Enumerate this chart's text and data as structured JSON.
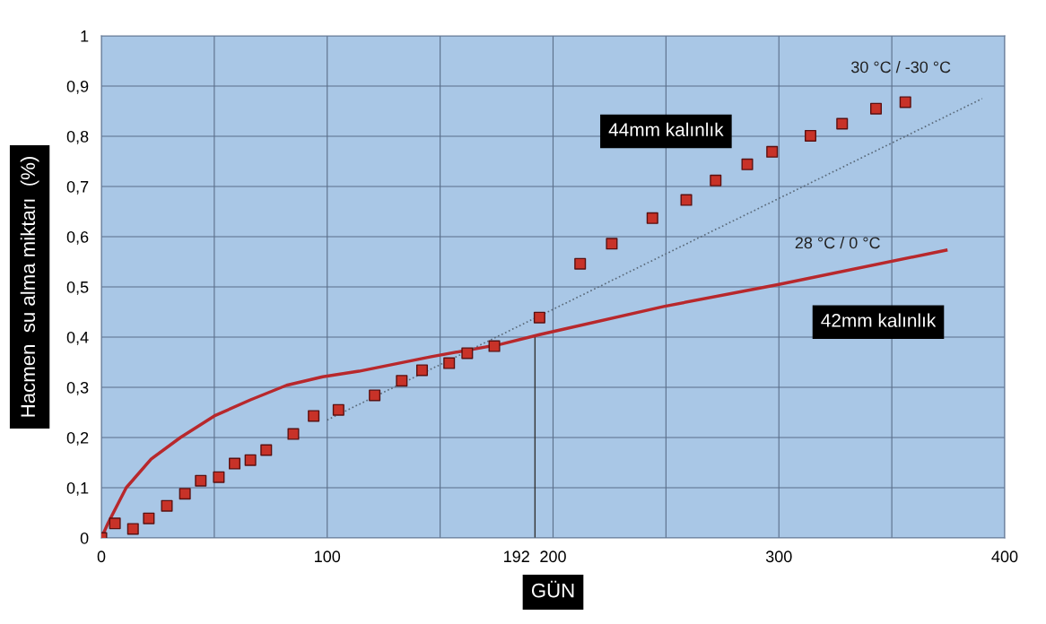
{
  "chart_data": {
    "type": "scatter",
    "xlabel": "GÜN",
    "ylabel": "Hacmen  su alma miktarı  (%)",
    "xlim": [
      0,
      400
    ],
    "ylim": [
      0,
      1
    ],
    "xticks": [
      0,
      {
        "value": 50,
        "label": null
      },
      100,
      {
        "value": 150,
        "label": null
      },
      200,
      {
        "value": 250,
        "label": null
      },
      300,
      {
        "value": 350,
        "label": null
      },
      400
    ],
    "yticks": [
      {
        "value": 0,
        "label": "0"
      },
      {
        "value": 0.1,
        "label": "0,1"
      },
      {
        "value": 0.2,
        "label": "0,2"
      },
      {
        "value": 0.3,
        "label": "0,3"
      },
      {
        "value": 0.4,
        "label": "0,4"
      },
      {
        "value": 0.5,
        "label": "0,5"
      },
      {
        "value": 0.6,
        "label": "0,6"
      },
      {
        "value": 0.7,
        "label": "0,7"
      },
      {
        "value": 0.8,
        "label": "0,8"
      },
      {
        "value": 0.9,
        "label": "0,9"
      },
      {
        "value": 1,
        "label": "1"
      }
    ],
    "grid": true,
    "series": [
      {
        "marker": "square",
        "color": "#c83228",
        "x": [
          0,
          6,
          14,
          21,
          29,
          37,
          44,
          52,
          59,
          66,
          73,
          85,
          94,
          105,
          121,
          133,
          142,
          154,
          162,
          174,
          194,
          212,
          226,
          244,
          259,
          272,
          286,
          297,
          314,
          328,
          343,
          356
        ],
        "values": [
          0,
          0.029,
          0.018,
          0.039,
          0.064,
          0.088,
          0.114,
          0.121,
          0.148,
          0.155,
          0.175,
          0.207,
          0.243,
          0.255,
          0.284,
          0.313,
          0.334,
          0.348,
          0.368,
          0.382,
          0.439,
          0.546,
          0.586,
          0.637,
          0.673,
          0.712,
          0.744,
          0.769,
          0.801,
          0.825,
          0.855,
          0.868
        ]
      },
      {
        "type": "line",
        "marker": "none",
        "line_style": "solid",
        "color": "#b8282c",
        "x": [
          0,
          3,
          11,
          22,
          35,
          50,
          66,
          82,
          98,
          114,
          146,
          177,
          194,
          249,
          300,
          374
        ],
        "values": [
          0,
          0.03,
          0.1,
          0.157,
          0.2,
          0.243,
          0.275,
          0.304,
          0.321,
          0.332,
          0.361,
          0.386,
          0.405,
          0.461,
          0.505,
          0.573
        ]
      },
      {
        "type": "line",
        "marker": "none",
        "line_style": "dotted",
        "color": "#5a6a7a",
        "x": [
          100,
          208,
          390
        ],
        "values": [
          0.235,
          0.473,
          0.875
        ]
      }
    ],
    "ref_lines": [
      {
        "axis": "x",
        "value": 192,
        "label": "192",
        "color": "#333333"
      }
    ],
    "annotations": [
      "30 °C / -30 °C",
      "44mm kalınlık",
      "28 °C / 0 °C",
      "42mm kalınlık"
    ]
  }
}
